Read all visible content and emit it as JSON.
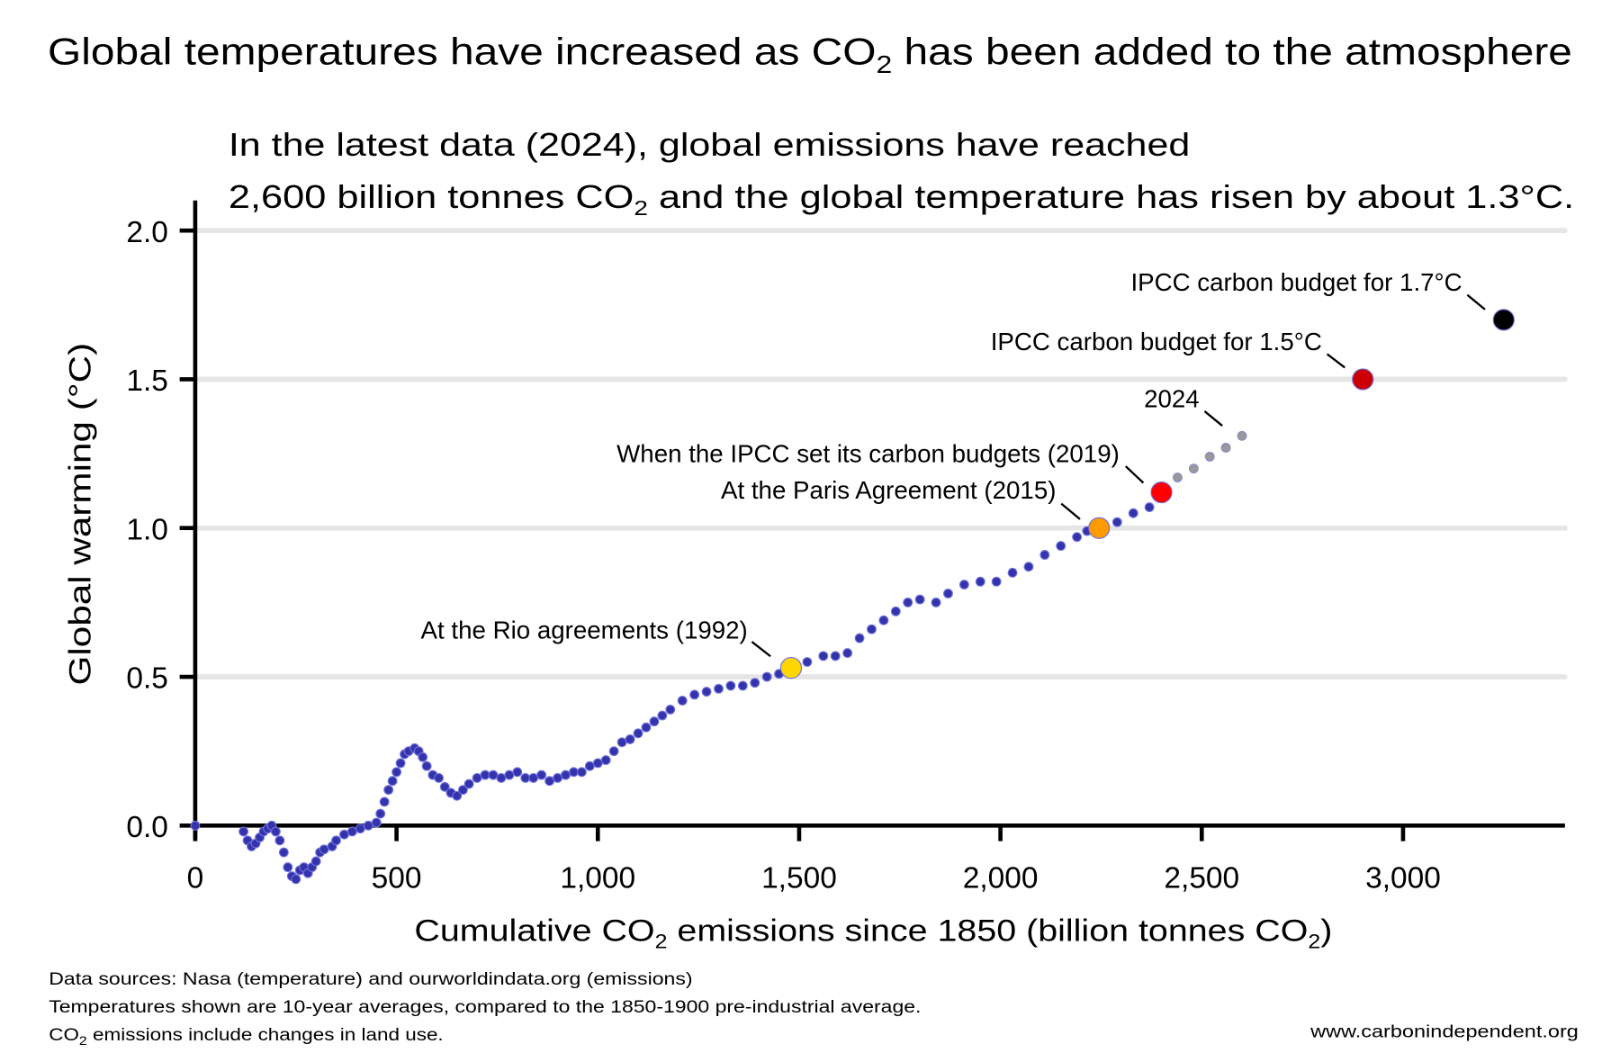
{
  "title": {
    "pre": "Global temperatures have increased as CO",
    "sub": "2",
    "post": " has been added to the atmosphere"
  },
  "subtitle": {
    "line1": "In the latest data (2024), global emissions have reached",
    "line2_pre": "2,600 billion tonnes CO",
    "line2_sub": "2",
    "line2_post": " and the global temperature has risen by about 1.3°C."
  },
  "footnotes": {
    "line1": "Data sources: Nasa (temperature) and ourworldindata.org (emissions)",
    "line2": "Temperatures shown are 10-year averages, compared to the 1850-1900 pre-industrial average.",
    "line3_pre": "CO",
    "line3_sub": "2",
    "line3_post": " emissions include changes in land use."
  },
  "website": "www.carbonindependent.org",
  "chart_data": {
    "type": "scatter",
    "xlabel": {
      "pre": "Cumulative CO",
      "sub": "2",
      "mid": " emissions since 1850 (billion tonnes CO",
      "sub2": "2",
      "post": ")"
    },
    "ylabel": "Global warming (°C)",
    "xlim": [
      0,
      3400
    ],
    "ylim": [
      -0.2,
      2.0
    ],
    "grid": "horizontal",
    "x_ticks": [
      0,
      500,
      1000,
      1500,
      2000,
      2500,
      3000
    ],
    "x_tick_labels": [
      "0",
      "500",
      "1,000",
      "1,500",
      "2,000",
      "2,500",
      "3,000"
    ],
    "y_ticks": [
      0,
      0.5,
      1.0,
      1.5,
      2.0
    ],
    "y_tick_labels": [
      "0.0",
      "0.5",
      "1.0",
      "1.5",
      "2.0"
    ],
    "colors": {
      "series": "#3333aa",
      "series_edge": "#6f6fe0",
      "projection": "#999999",
      "grid": "#e6e6e6"
    },
    "series": {
      "x": [
        0,
        120,
        130,
        140,
        150,
        160,
        170,
        180,
        190,
        200,
        210,
        220,
        230,
        240,
        250,
        260,
        270,
        280,
        290,
        300,
        310,
        320,
        340,
        350,
        370,
        390,
        410,
        430,
        450,
        460,
        470,
        480,
        490,
        500,
        510,
        520,
        530,
        545,
        555,
        565,
        575,
        590,
        605,
        620,
        635,
        650,
        665,
        680,
        700,
        720,
        740,
        760,
        780,
        800,
        820,
        840,
        860,
        880,
        900,
        920,
        940,
        960,
        980,
        1000,
        1020,
        1040,
        1060,
        1080,
        1100,
        1120,
        1140,
        1160,
        1180,
        1210,
        1240,
        1270,
        1300,
        1330,
        1360,
        1390,
        1420,
        1450,
        1520,
        1560,
        1590,
        1620,
        1650,
        1680,
        1710,
        1740,
        1770,
        1800,
        1840,
        1870,
        1910,
        1950,
        1990,
        2030,
        2070,
        2110,
        2150,
        2190,
        2215,
        2290,
        2330,
        2370
      ],
      "y": [
        0,
        -0.02,
        -0.05,
        -0.07,
        -0.06,
        -0.04,
        -0.02,
        -0.01,
        0.0,
        -0.02,
        -0.05,
        -0.09,
        -0.14,
        -0.17,
        -0.18,
        -0.15,
        -0.14,
        -0.16,
        -0.14,
        -0.12,
        -0.09,
        -0.08,
        -0.07,
        -0.05,
        -0.03,
        -0.02,
        -0.01,
        0.0,
        0.01,
        0.04,
        0.08,
        0.12,
        0.15,
        0.18,
        0.21,
        0.24,
        0.25,
        0.26,
        0.25,
        0.23,
        0.2,
        0.17,
        0.16,
        0.13,
        0.11,
        0.1,
        0.12,
        0.14,
        0.16,
        0.17,
        0.17,
        0.16,
        0.17,
        0.18,
        0.16,
        0.16,
        0.17,
        0.15,
        0.16,
        0.17,
        0.18,
        0.18,
        0.2,
        0.21,
        0.22,
        0.25,
        0.28,
        0.29,
        0.31,
        0.33,
        0.35,
        0.37,
        0.39,
        0.42,
        0.44,
        0.45,
        0.46,
        0.47,
        0.47,
        0.48,
        0.5,
        0.51,
        0.55,
        0.57,
        0.57,
        0.58,
        0.63,
        0.66,
        0.69,
        0.72,
        0.75,
        0.76,
        0.75,
        0.78,
        0.81,
        0.82,
        0.82,
        0.85,
        0.87,
        0.91,
        0.94,
        0.97,
        0.99,
        1.02,
        1.05,
        1.07
      ]
    },
    "recent_series": {
      "x": [
        2440,
        2480,
        2520,
        2560,
        2600
      ],
      "y": [
        1.17,
        1.2,
        1.24,
        1.27,
        1.31
      ]
    },
    "annotations": [
      {
        "label": "At the Rio agreements (1992)",
        "x": 1480,
        "y": 0.53,
        "color": "#ffd700",
        "marker": true
      },
      {
        "label": "At the Paris Agreement (2015)",
        "x": 2245,
        "y": 1.0,
        "color": "#ff9900",
        "marker": true
      },
      {
        "label": "When the IPCC set its carbon budgets (2019)",
        "x": 2400,
        "y": 1.12,
        "color": "#ff0000",
        "marker": true
      },
      {
        "label": "2024",
        "x": 2600,
        "y": 1.31,
        "color": "#999999",
        "marker": false
      },
      {
        "label": "IPCC carbon budget for 1.5°C",
        "x": 2900,
        "y": 1.5,
        "color": "#cc0000",
        "marker": true
      },
      {
        "label": "IPCC carbon budget for 1.7°C",
        "x": 3250,
        "y": 1.7,
        "color": "#000000",
        "marker": true
      }
    ]
  }
}
